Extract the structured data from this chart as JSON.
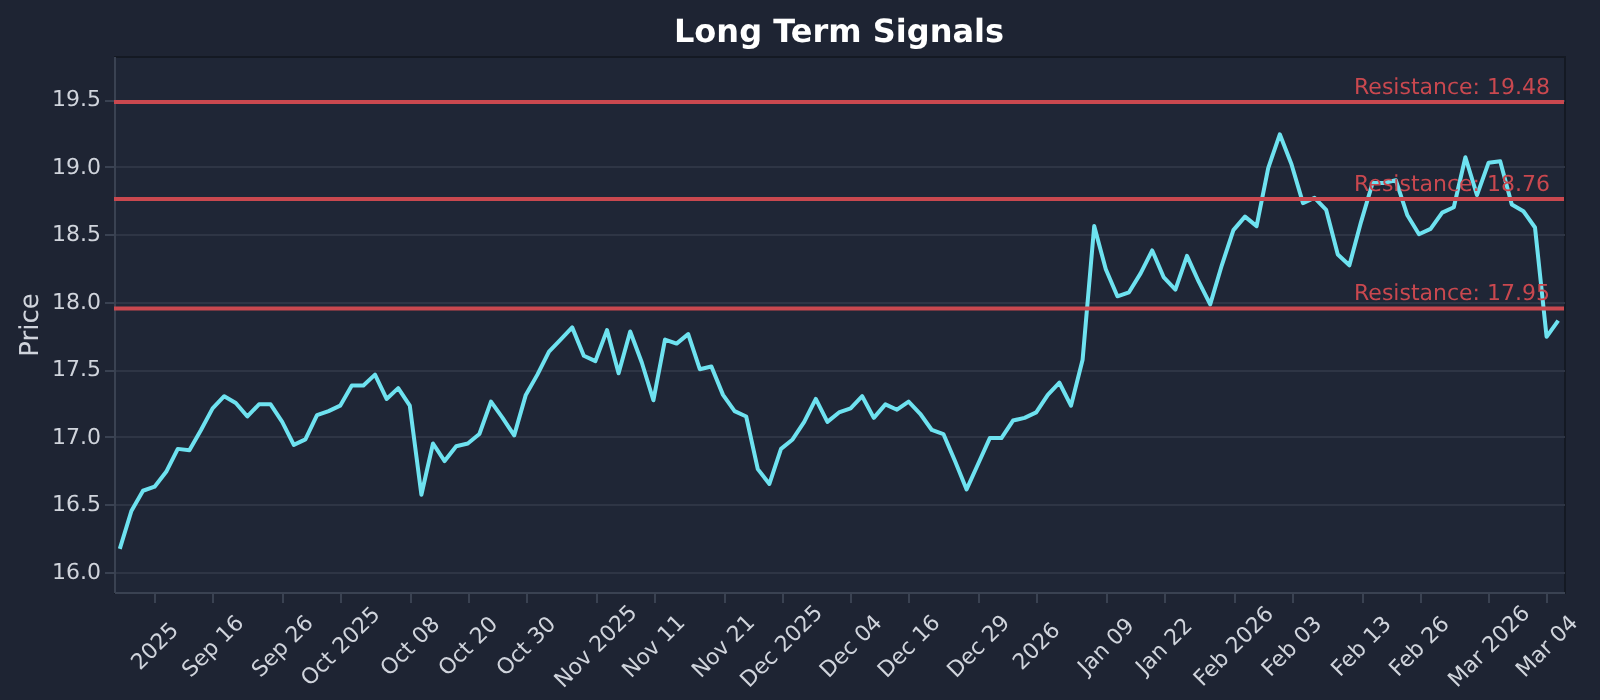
{
  "chart_data": {
    "type": "line",
    "title": "Long Term Signals",
    "ylabel": "Price",
    "categories": [
      null,
      null,
      null,
      "2025",
      null,
      null,
      null,
      null,
      "Sep 16",
      null,
      null,
      null,
      null,
      null,
      "Sep 26",
      null,
      null,
      null,
      null,
      "Oct 2025",
      null,
      null,
      null,
      null,
      null,
      "Oct 08",
      null,
      null,
      null,
      null,
      "Oct 20",
      null,
      null,
      null,
      null,
      "Oct 30",
      null,
      null,
      null,
      null,
      null,
      "Nov 2025",
      null,
      null,
      null,
      null,
      "Nov 11",
      null,
      null,
      null,
      null,
      null,
      "Nov 21",
      null,
      null,
      null,
      null,
      "Dec 2025",
      null,
      null,
      null,
      null,
      null,
      "Dec 04",
      null,
      null,
      null,
      null,
      "Dec 16",
      null,
      null,
      null,
      null,
      null,
      "Dec 29",
      null,
      null,
      null,
      null,
      "2026",
      null,
      null,
      null,
      null,
      null,
      "Jan 09",
      null,
      null,
      null,
      null,
      "Jan 22",
      null,
      null,
      null,
      null,
      null,
      "Feb 2026",
      null,
      null,
      null,
      null,
      "Feb 03",
      null,
      null,
      null,
      null,
      null,
      "Feb 13",
      null,
      null,
      null,
      null,
      "Feb 26",
      null,
      null,
      null,
      null,
      null,
      "Mar 2026",
      null,
      null,
      null,
      null,
      "Mar 04",
      null
    ],
    "series": [
      {
        "color": "#6ee2f0",
        "values": [
          16.17,
          16.45,
          16.6,
          16.63,
          16.74,
          16.91,
          16.9,
          17.05,
          17.21,
          17.3,
          17.25,
          17.15,
          17.24,
          17.24,
          17.11,
          16.94,
          16.98,
          17.16,
          17.19,
          17.23,
          17.38,
          17.38,
          17.46,
          17.28,
          17.36,
          17.23,
          16.57,
          16.95,
          16.82,
          16.93,
          16.95,
          17.02,
          17.26,
          17.14,
          17.01,
          17.31,
          17.46,
          17.63,
          17.72,
          17.81,
          17.6,
          17.56,
          17.79,
          17.47,
          17.78,
          17.55,
          17.27,
          17.72,
          17.69,
          17.76,
          17.5,
          17.52,
          17.31,
          17.19,
          17.15,
          16.76,
          16.65,
          16.91,
          16.98,
          17.11,
          17.28,
          17.11,
          17.18,
          17.21,
          17.3,
          17.14,
          17.24,
          17.2,
          17.26,
          17.17,
          17.05,
          17.02,
          16.82,
          16.61,
          16.8,
          16.99,
          16.99,
          17.12,
          17.14,
          17.18,
          17.31,
          17.4,
          17.23,
          17.57,
          18.56,
          18.24,
          18.04,
          18.07,
          18.21,
          18.38,
          18.18,
          18.09,
          18.34,
          18.15,
          17.98,
          18.27,
          18.53,
          18.63,
          18.56,
          18.99,
          19.24,
          19.02,
          18.73,
          18.77,
          18.68,
          18.35,
          18.27,
          18.59,
          18.88,
          18.88,
          18.9,
          18.64,
          18.5,
          18.54,
          18.66,
          18.7,
          19.07,
          18.79,
          19.03,
          19.04,
          18.72,
          18.67,
          18.55,
          17.74,
          17.86
        ]
      }
    ],
    "ylim": [
      15.85,
      19.82
    ],
    "yticks": [
      {
        "value": 16,
        "label": "16.0"
      },
      {
        "value": 16.5,
        "label": "16.5"
      },
      {
        "value": 17,
        "label": "17.0"
      },
      {
        "value": 17.5,
        "label": "17.5"
      },
      {
        "value": 18,
        "label": "18.0"
      },
      {
        "value": 18.5,
        "label": "18.5"
      },
      {
        "value": 19,
        "label": "19.0"
      },
      {
        "value": 19.5,
        "label": "19.5"
      }
    ],
    "ref_lines": [
      {
        "axis": "y",
        "value": 19.48,
        "label": "Resistance: 19.48",
        "color": "#c9484f"
      },
      {
        "axis": "y",
        "value": 18.76,
        "label": "Resistance: 18.76",
        "color": "#c9484f"
      },
      {
        "axis": "y",
        "value": 17.95,
        "label": "Resistance: 17.95",
        "color": "#c9484f"
      }
    ],
    "grid": "y",
    "marker": "none",
    "line_style": "solid"
  }
}
